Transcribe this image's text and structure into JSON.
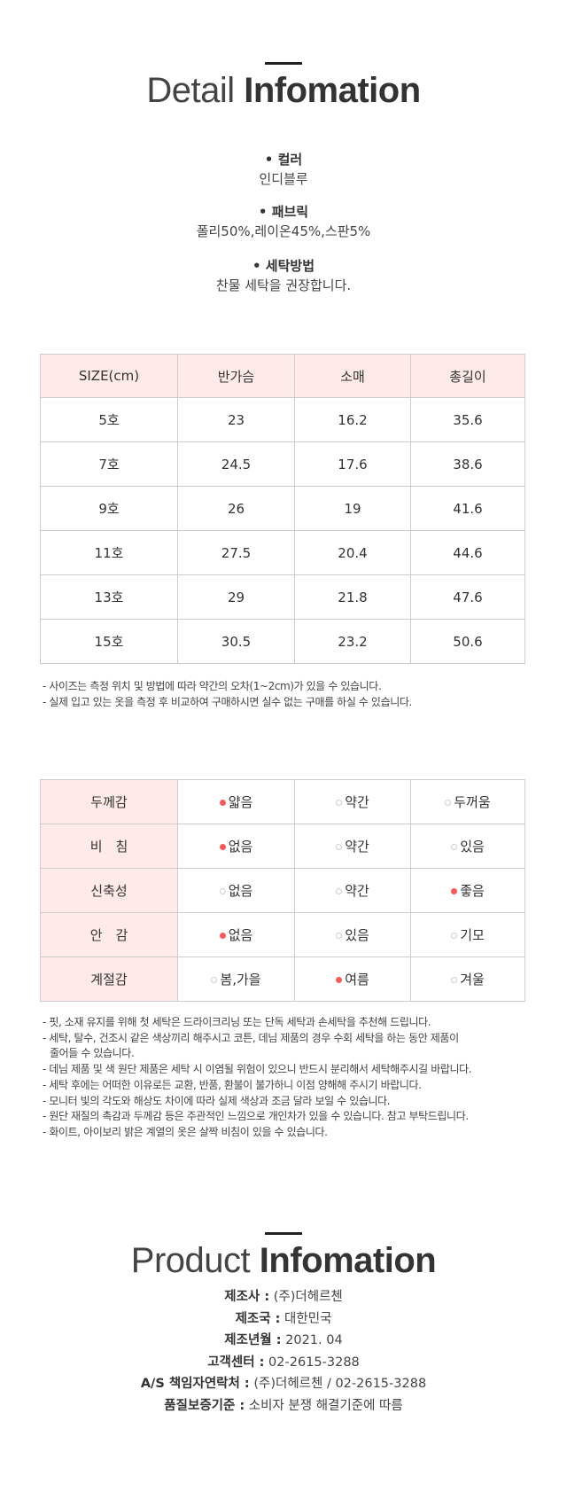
{
  "detail": {
    "title_light": "Detail",
    "title_bold": "Infomation",
    "specs": [
      {
        "label": "• 컬러",
        "value": "인디블루"
      },
      {
        "label": "• 패브릭",
        "value": "폴리50%,레이온45%,스판5%"
      },
      {
        "label": "• 세탁방법",
        "value": "찬물 세탁을 권장합니다."
      }
    ]
  },
  "size_table": {
    "headers": [
      "SIZE(cm)",
      "반가슴",
      "소매",
      "총길이"
    ],
    "rows": [
      [
        "5호",
        "23",
        "16.2",
        "35.6"
      ],
      [
        "7호",
        "24.5",
        "17.6",
        "38.6"
      ],
      [
        "9호",
        "26",
        "19",
        "41.6"
      ],
      [
        "11호",
        "27.5",
        "20.4",
        "44.6"
      ],
      [
        "13호",
        "29",
        "21.8",
        "47.6"
      ],
      [
        "15호",
        "30.5",
        "23.2",
        "50.6"
      ]
    ],
    "notes": [
      "- 사이즈는 측정 위치 및 방법에 따라 약간의 오차(1~2cm)가 있을 수 있습니다.",
      "- 실제 입고 있는 옷을 측정 후 비교하여 구매하시면 실수 없는 구매를 하실 수 있습니다."
    ]
  },
  "feel_table": {
    "accent_color": "#f45a5a",
    "rows": [
      {
        "label": "두께감",
        "options": [
          "얇음",
          "약간",
          "두꺼움"
        ],
        "selected": 0
      },
      {
        "label": "비　침",
        "options": [
          "없음",
          "약간",
          "있음"
        ],
        "selected": 0
      },
      {
        "label": "신축성",
        "options": [
          "없음",
          "약간",
          "좋음"
        ],
        "selected": 2
      },
      {
        "label": "안　감",
        "options": [
          "없음",
          "있음",
          "기모"
        ],
        "selected": 0
      },
      {
        "label": "계절감",
        "options": [
          "봄,가을",
          "여름",
          "겨울"
        ],
        "selected": 1
      }
    ],
    "notes": [
      "- 핏, 소재 유지를 위해 첫 세탁은 드라이크리닝 또는 단독 세탁과 손세탁을 추천해 드립니다.",
      "- 세탁, 탈수, 건조시 같은 색상끼리 해주시고 코튼, 데님 제품의 경우 수회 세탁을 하는 동안 제품이",
      "줄어들 수 있습니다.",
      "- 데님 제품 및 색 원단 제품은 세탁 시 이염될 위험이 있으니 반드시 분리해서 세탁해주시길 바랍니다.",
      "- 세탁 후에는 어떠한 이유로든 교환, 반품, 환불이 불가하니 이점 양해해 주시기 바랍니다.",
      "- 모니터 빛의 각도와 해상도 차이에 따라 실제 색상과 조금 달라 보일 수 있습니다.",
      "- 원단 재질의 촉감과 두께감 등은 주관적인 느낌으로 개인차가 있을 수 있습니다. 참고 부탁드립니다.",
      "- 화이트, 아이보리 밝은 계열의 옷은 살짝 비침이 있을 수 있습니다."
    ]
  },
  "product": {
    "title_light": "Product",
    "title_bold": "Infomation",
    "items": [
      {
        "label": "제조사 :",
        "value": "(주)더헤르첸"
      },
      {
        "label": "제조국 :",
        "value": "대한민국"
      },
      {
        "label": "제조년월 :",
        "value": "2021. 04"
      },
      {
        "label": "고객센터 :",
        "value": "02-2615-3288"
      },
      {
        "label": "A/S 책임자연락처 :",
        "value": "(주)더헤르첸 / 02-2615-3288"
      },
      {
        "label": "품질보증기준 :",
        "value": "소비자 분쟁 해결기준에 따름"
      }
    ]
  }
}
